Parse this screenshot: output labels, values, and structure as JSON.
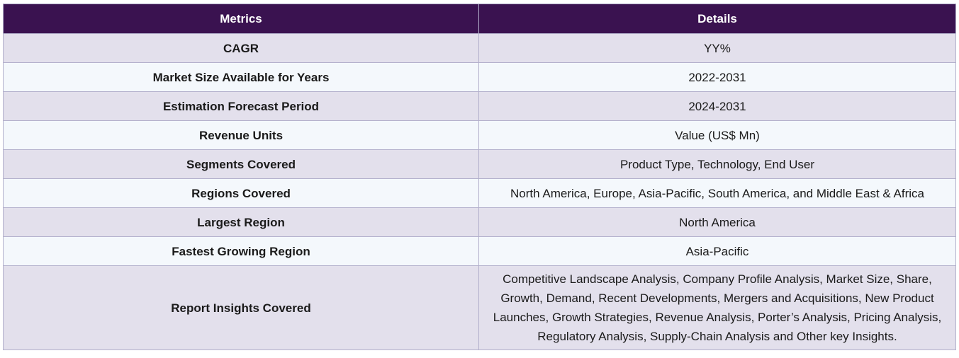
{
  "header": {
    "metrics_label": "Metrics",
    "details_label": "Details"
  },
  "rows": [
    {
      "metric": "CAGR",
      "details": "YY%"
    },
    {
      "metric": "Market Size Available for Years",
      "details": "2022-2031"
    },
    {
      "metric": "Estimation Forecast Period",
      "details": "2024-2031"
    },
    {
      "metric": "Revenue Units",
      "details": "Value (US$ Mn)"
    },
    {
      "metric": "Segments Covered",
      "details": "Product Type, Technology, End User"
    },
    {
      "metric": "Regions Covered",
      "details": "North America, Europe, Asia-Pacific, South America, and Middle East & Africa"
    },
    {
      "metric": "Largest Region",
      "details": "North America"
    },
    {
      "metric": "Fastest Growing Region",
      "details": "Asia-Pacific"
    },
    {
      "metric": "Report Insights Covered",
      "details": "Competitive Landscape Analysis, Company Profile Analysis, Market Size, Share, Growth, Demand, Recent Developments, Mergers and Acquisitions, New Product Launches, Growth Strategies, Revenue Analysis, Porter’s Analysis, Pricing Analysis, Regulatory Analysis, Supply-Chain Analysis and Other key Insights."
    }
  ],
  "colors": {
    "header_bg": "#3a1250",
    "row_odd_bg": "#e3e0ec",
    "row_even_bg": "#f4f8fc",
    "border": "#b3b0cc"
  }
}
